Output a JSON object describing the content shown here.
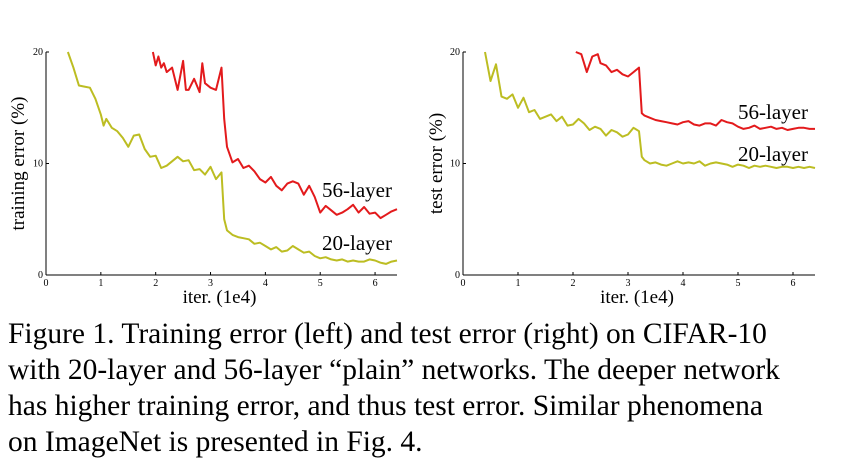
{
  "chart_data": [
    {
      "type": "line",
      "ylabel": "training error (%)",
      "xlabel": "iter. (1e4)",
      "xlim": [
        0,
        6.4
      ],
      "ylim": [
        0,
        20
      ],
      "xticks": [
        0,
        1,
        2,
        3,
        4,
        5,
        6
      ],
      "yticks": [
        0,
        10,
        20
      ],
      "grid": false,
      "series": [
        {
          "name": "56-layer",
          "color": "#e31a1c",
          "x": [
            1.95,
            2.0,
            2.05,
            2.1,
            2.15,
            2.2,
            2.3,
            2.4,
            2.5,
            2.55,
            2.6,
            2.7,
            2.8,
            2.85,
            2.9,
            3.0,
            3.1,
            3.2,
            3.25,
            3.3,
            3.4,
            3.5,
            3.6,
            3.7,
            3.8,
            3.9,
            4.0,
            4.1,
            4.2,
            4.3,
            4.4,
            4.5,
            4.6,
            4.7,
            4.8,
            4.9,
            5.0,
            5.1,
            5.2,
            5.3,
            5.4,
            5.5,
            5.6,
            5.7,
            5.8,
            5.9,
            6.0,
            6.1,
            6.2,
            6.3,
            6.4
          ],
          "y": [
            20.0,
            18.8,
            19.6,
            18.6,
            19.0,
            18.2,
            18.6,
            16.6,
            19.2,
            16.6,
            16.6,
            17.6,
            16.4,
            19.0,
            17.2,
            16.8,
            16.6,
            18.6,
            14.0,
            11.5,
            10.1,
            10.4,
            9.6,
            9.8,
            9.3,
            8.6,
            8.3,
            8.8,
            8.0,
            7.6,
            8.2,
            8.4,
            8.2,
            7.2,
            8.0,
            7.0,
            5.6,
            6.2,
            5.8,
            5.4,
            5.6,
            5.9,
            6.3,
            5.6,
            6.1,
            5.5,
            5.6,
            5.1,
            5.4,
            5.7,
            5.9
          ]
        },
        {
          "name": "20-layer",
          "color": "#bcbd22",
          "x": [
            0.4,
            0.5,
            0.6,
            0.7,
            0.8,
            0.9,
            1.0,
            1.05,
            1.1,
            1.2,
            1.3,
            1.4,
            1.5,
            1.6,
            1.7,
            1.8,
            1.9,
            2.0,
            2.1,
            2.2,
            2.3,
            2.4,
            2.5,
            2.6,
            2.7,
            2.8,
            2.9,
            3.0,
            3.1,
            3.2,
            3.25,
            3.3,
            3.4,
            3.5,
            3.6,
            3.7,
            3.8,
            3.9,
            4.0,
            4.1,
            4.2,
            4.3,
            4.4,
            4.5,
            4.6,
            4.7,
            4.8,
            4.9,
            5.0,
            5.1,
            5.2,
            5.3,
            5.4,
            5.5,
            5.6,
            5.7,
            5.8,
            5.9,
            6.0,
            6.1,
            6.2,
            6.3,
            6.4
          ],
          "y": [
            20.0,
            18.6,
            17.0,
            16.9,
            16.8,
            15.8,
            14.4,
            13.4,
            14.0,
            13.2,
            12.9,
            12.3,
            11.5,
            12.5,
            12.6,
            11.3,
            10.6,
            10.7,
            9.6,
            9.8,
            10.2,
            10.6,
            10.2,
            10.3,
            9.4,
            9.5,
            9.0,
            9.7,
            8.6,
            9.2,
            5.0,
            4.0,
            3.6,
            3.4,
            3.3,
            3.2,
            2.8,
            2.9,
            2.6,
            2.3,
            2.5,
            2.1,
            2.2,
            2.6,
            2.3,
            2.0,
            2.1,
            1.7,
            1.5,
            1.6,
            1.4,
            1.3,
            1.4,
            1.2,
            1.3,
            1.2,
            1.2,
            1.4,
            1.3,
            1.1,
            1.0,
            1.2,
            1.3
          ]
        }
      ]
    },
    {
      "type": "line",
      "ylabel": "test error (%)",
      "xlabel": "iter. (1e4)",
      "xlim": [
        0,
        6.4
      ],
      "ylim": [
        0,
        20
      ],
      "xticks": [
        0,
        1,
        2,
        3,
        4,
        5,
        6
      ],
      "yticks": [
        0,
        10,
        20
      ],
      "grid": false,
      "series": [
        {
          "name": "56-layer",
          "color": "#e31a1c",
          "x": [
            2.05,
            2.15,
            2.25,
            2.35,
            2.45,
            2.5,
            2.6,
            2.7,
            2.8,
            2.9,
            3.0,
            3.1,
            3.2,
            3.25,
            3.3,
            3.4,
            3.5,
            3.6,
            3.7,
            3.8,
            3.9,
            4.0,
            4.1,
            4.2,
            4.3,
            4.4,
            4.5,
            4.6,
            4.7,
            4.8,
            4.9,
            5.0,
            5.1,
            5.2,
            5.3,
            5.4,
            5.5,
            5.6,
            5.7,
            5.8,
            5.9,
            6.0,
            6.1,
            6.2,
            6.3,
            6.4
          ],
          "y": [
            20.0,
            19.8,
            18.2,
            19.6,
            19.8,
            19.0,
            18.8,
            18.2,
            18.4,
            18.0,
            17.8,
            18.2,
            18.6,
            14.5,
            14.3,
            14.1,
            13.9,
            13.8,
            13.7,
            13.6,
            13.5,
            13.7,
            13.8,
            13.5,
            13.4,
            13.6,
            13.6,
            13.4,
            13.9,
            13.7,
            13.6,
            13.3,
            13.1,
            13.2,
            13.4,
            13.1,
            13.2,
            13.3,
            13.1,
            13.2,
            13.0,
            13.1,
            13.2,
            13.2,
            13.1,
            13.1
          ]
        },
        {
          "name": "20-layer",
          "color": "#bcbd22",
          "x": [
            0.4,
            0.5,
            0.6,
            0.7,
            0.8,
            0.9,
            1.0,
            1.1,
            1.2,
            1.3,
            1.4,
            1.5,
            1.6,
            1.7,
            1.8,
            1.9,
            2.0,
            2.1,
            2.2,
            2.3,
            2.4,
            2.5,
            2.6,
            2.7,
            2.8,
            2.9,
            3.0,
            3.1,
            3.2,
            3.25,
            3.3,
            3.4,
            3.5,
            3.6,
            3.7,
            3.8,
            3.9,
            4.0,
            4.1,
            4.2,
            4.3,
            4.4,
            4.5,
            4.6,
            4.7,
            4.8,
            4.9,
            5.0,
            5.1,
            5.2,
            5.3,
            5.4,
            5.5,
            5.6,
            5.7,
            5.8,
            5.9,
            6.0,
            6.1,
            6.2,
            6.3,
            6.4
          ],
          "y": [
            20.0,
            17.4,
            18.9,
            16.0,
            15.8,
            16.2,
            15.0,
            15.9,
            14.6,
            14.8,
            14.0,
            14.2,
            14.4,
            13.8,
            14.2,
            13.4,
            13.5,
            14.0,
            13.6,
            13.0,
            13.3,
            13.1,
            12.5,
            13.0,
            12.8,
            12.4,
            12.6,
            13.2,
            12.9,
            10.6,
            10.3,
            10.0,
            10.1,
            9.9,
            9.8,
            10.0,
            10.2,
            10.0,
            10.1,
            10.0,
            10.2,
            9.8,
            10.0,
            10.1,
            10.0,
            9.9,
            9.7,
            9.9,
            9.8,
            9.6,
            9.8,
            9.7,
            9.8,
            9.7,
            9.6,
            9.7,
            9.7,
            9.6,
            9.7,
            9.6,
            9.7,
            9.6
          ]
        }
      ]
    }
  ],
  "caption": {
    "lines": [
      "Figure 1. Training error (left) and test error (right) on CIFAR-10",
      "with 20-layer and 56-layer “plain” networks. The deeper network",
      "has higher training error, and thus test error.  Similar phenomena",
      "on ImageNet is presented in Fig. 4."
    ]
  }
}
